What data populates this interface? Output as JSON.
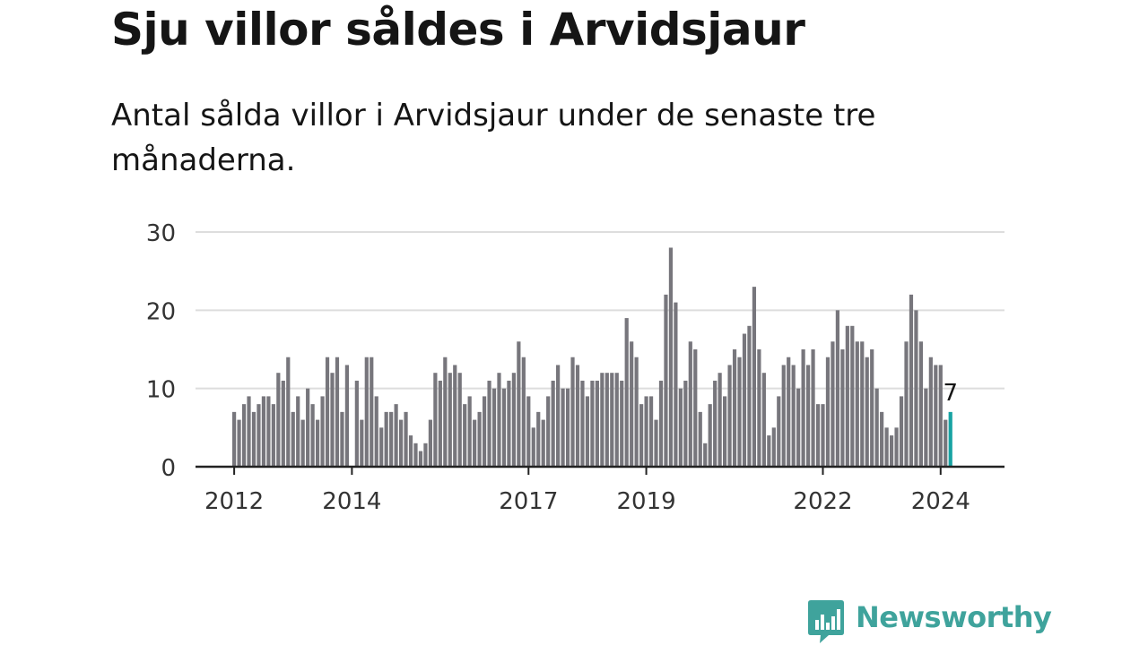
{
  "title": "Sju villor såldes i Arvidsjaur",
  "subtitle": "Antal sålda villor i Arvidsjaur under de senaste tre månaderna.",
  "brand": {
    "name": "Newsworthy",
    "color": "#3fa39c",
    "icon": "newsworthy-bar-chart-icon"
  },
  "colors": {
    "bar": "#77767c",
    "highlight": "#18a3a3",
    "grid": "#dddddd",
    "axis": "#222222"
  },
  "chart_data": {
    "type": "bar",
    "title": "Sju villor såldes i Arvidsjaur",
    "xlabel": "",
    "ylabel": "",
    "ylim": [
      0,
      30
    ],
    "yticks": [
      0,
      10,
      20,
      30
    ],
    "xticks": [
      "2012",
      "2014",
      "2017",
      "2019",
      "2022",
      "2024"
    ],
    "x_range": [
      "2012-01",
      "2024-03"
    ],
    "annotation": {
      "label": "7",
      "category": "2024-03"
    },
    "series": [
      {
        "name": "Antal sålda villor (senaste tre månaderna)",
        "categories": [
          "2012-01",
          "2012-02",
          "2012-03",
          "2012-04",
          "2012-05",
          "2012-06",
          "2012-07",
          "2012-08",
          "2012-09",
          "2012-10",
          "2012-11",
          "2012-12",
          "2013-01",
          "2013-02",
          "2013-03",
          "2013-04",
          "2013-05",
          "2013-06",
          "2013-07",
          "2013-08",
          "2013-09",
          "2013-10",
          "2013-11",
          "2013-12",
          "2014-01",
          "2014-02",
          "2014-03",
          "2014-04",
          "2014-05",
          "2014-06",
          "2014-07",
          "2014-08",
          "2014-09",
          "2014-10",
          "2014-11",
          "2014-12",
          "2015-01",
          "2015-02",
          "2015-03",
          "2015-04",
          "2015-05",
          "2015-06",
          "2015-07",
          "2015-08",
          "2015-09",
          "2015-10",
          "2015-11",
          "2015-12",
          "2016-01",
          "2016-02",
          "2016-03",
          "2016-04",
          "2016-05",
          "2016-06",
          "2016-07",
          "2016-08",
          "2016-09",
          "2016-10",
          "2016-11",
          "2016-12",
          "2017-01",
          "2017-02",
          "2017-03",
          "2017-04",
          "2017-05",
          "2017-06",
          "2017-07",
          "2017-08",
          "2017-09",
          "2017-10",
          "2017-11",
          "2017-12",
          "2018-01",
          "2018-02",
          "2018-03",
          "2018-04",
          "2018-05",
          "2018-06",
          "2018-07",
          "2018-08",
          "2018-09",
          "2018-10",
          "2018-11",
          "2018-12",
          "2019-01",
          "2019-02",
          "2019-03",
          "2019-04",
          "2019-05",
          "2019-06",
          "2019-07",
          "2019-08",
          "2019-09",
          "2019-10",
          "2019-11",
          "2019-12",
          "2020-01",
          "2020-02",
          "2020-03",
          "2020-04",
          "2020-05",
          "2020-06",
          "2020-07",
          "2020-08",
          "2020-09",
          "2020-10",
          "2020-11",
          "2020-12",
          "2021-01",
          "2021-02",
          "2021-03",
          "2021-04",
          "2021-05",
          "2021-06",
          "2021-07",
          "2021-08",
          "2021-09",
          "2021-10",
          "2021-11",
          "2021-12",
          "2022-01",
          "2022-02",
          "2022-03",
          "2022-04",
          "2022-05",
          "2022-06",
          "2022-07",
          "2022-08",
          "2022-09",
          "2022-10",
          "2022-11",
          "2022-12",
          "2023-01",
          "2023-02",
          "2023-03",
          "2023-04",
          "2023-05",
          "2023-06",
          "2023-07",
          "2023-08",
          "2023-09",
          "2023-10",
          "2023-11",
          "2023-12",
          "2024-01",
          "2024-02",
          "2024-03"
        ],
        "values": [
          7,
          6,
          8,
          9,
          7,
          8,
          9,
          9,
          8,
          12,
          11,
          14,
          7,
          9,
          6,
          10,
          8,
          6,
          9,
          14,
          12,
          14,
          7,
          13,
          0,
          11,
          6,
          14,
          14,
          9,
          5,
          7,
          7,
          8,
          6,
          7,
          4,
          3,
          2,
          3,
          6,
          12,
          11,
          14,
          12,
          13,
          12,
          8,
          9,
          6,
          7,
          9,
          11,
          10,
          12,
          10,
          11,
          12,
          16,
          14,
          9,
          5,
          7,
          6,
          9,
          11,
          13,
          10,
          10,
          14,
          13,
          11,
          9,
          11,
          11,
          12,
          12,
          12,
          12,
          11,
          19,
          16,
          14,
          8,
          9,
          9,
          6,
          11,
          22,
          28,
          21,
          10,
          11,
          16,
          15,
          7,
          3,
          8,
          11,
          12,
          9,
          13,
          15,
          14,
          17,
          18,
          23,
          15,
          12,
          4,
          5,
          9,
          13,
          14,
          13,
          10,
          15,
          13,
          15,
          8,
          8,
          14,
          16,
          20,
          15,
          18,
          18,
          16,
          16,
          14,
          15,
          10,
          7,
          5,
          4,
          5,
          9,
          16,
          22,
          20,
          16,
          10,
          14,
          13,
          13,
          6,
          7
        ]
      }
    ]
  }
}
